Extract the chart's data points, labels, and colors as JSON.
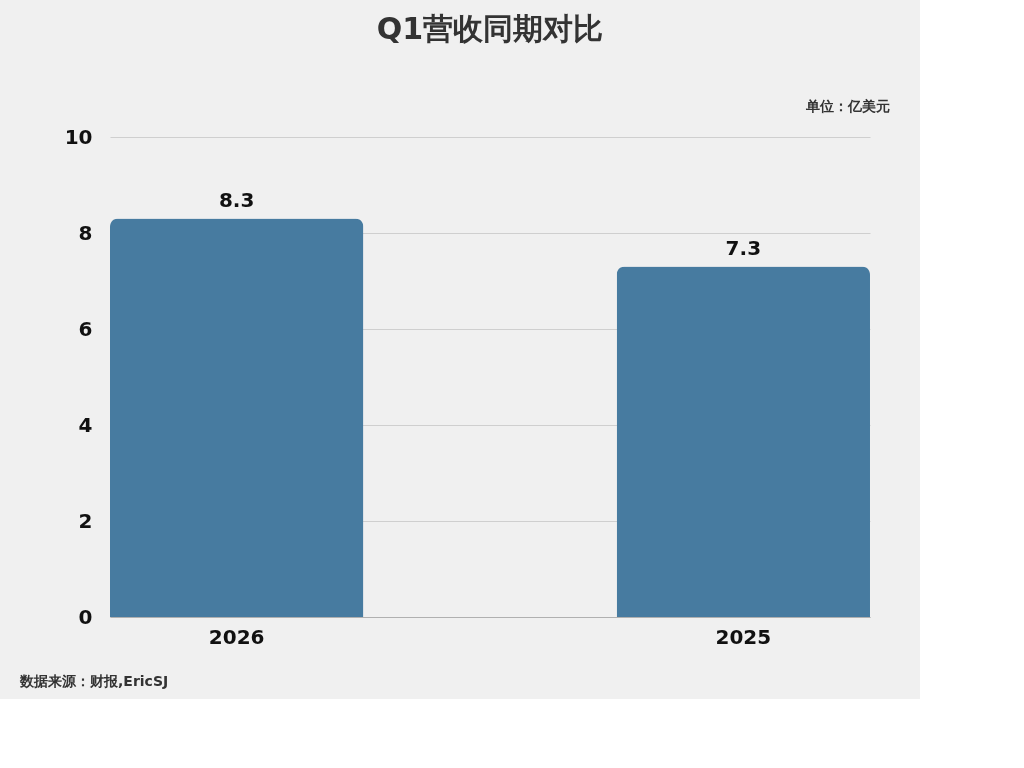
{
  "chart_data": {
    "type": "bar",
    "title": "Q1营收同期对比",
    "categories": [
      "2026",
      "2025"
    ],
    "values": [
      8.3,
      7.3
    ],
    "color": "#477ba0",
    "ylim": [
      0,
      10
    ],
    "yticks": [
      0,
      2,
      4,
      6,
      8,
      10
    ],
    "grid": "y",
    "data_labels": true,
    "annotations": [
      "单位：亿美元",
      "数据来源：财报,EricSJ"
    ]
  }
}
